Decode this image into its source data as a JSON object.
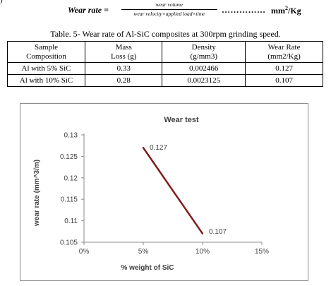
{
  "formula": {
    "lhs": "Wear rate =",
    "numerator": "wear volume",
    "denominator": "wear velocity×applied load×time",
    "dots": "……………",
    "unit_base": "mm",
    "unit_sup": "2",
    "unit_tail": "/Kg"
  },
  "table": {
    "caption": "Table. 5- Wear rate of Al-SiC composites at 300rpm grinding speed.",
    "headers": [
      [
        "Sample",
        "Composition"
      ],
      [
        "Mass",
        "Loss (g)"
      ],
      [
        "Density",
        "(g/mm3)"
      ],
      [
        "Wear Rate",
        "(mm2/Kg)"
      ]
    ],
    "rows": [
      [
        "Al with 5% SiC",
        "0.33",
        "0.002466",
        "0.127"
      ],
      [
        "Al with 10% SiC",
        "0.28",
        "0.0023125",
        "0.107"
      ]
    ]
  },
  "chart_data": {
    "type": "line",
    "title": "Wear test",
    "xlabel": "% weight of SiC",
    "ylabel": "wear rate (mm^3/m)",
    "x_ticks": [
      "0%",
      "5%",
      "10%",
      "15%"
    ],
    "xlim": [
      0,
      15
    ],
    "y_ticks": [
      "0.105",
      "0.11",
      "0.115",
      "0.12",
      "0.125",
      "0.13"
    ],
    "ylim": [
      0.105,
      0.13
    ],
    "series": [
      {
        "x": [
          5,
          10
        ],
        "y": [
          0.127,
          0.107
        ],
        "labels": [
          "0.127",
          "0.107"
        ],
        "color": "#7f1d1d"
      }
    ],
    "grid": false,
    "legend": "none"
  }
}
